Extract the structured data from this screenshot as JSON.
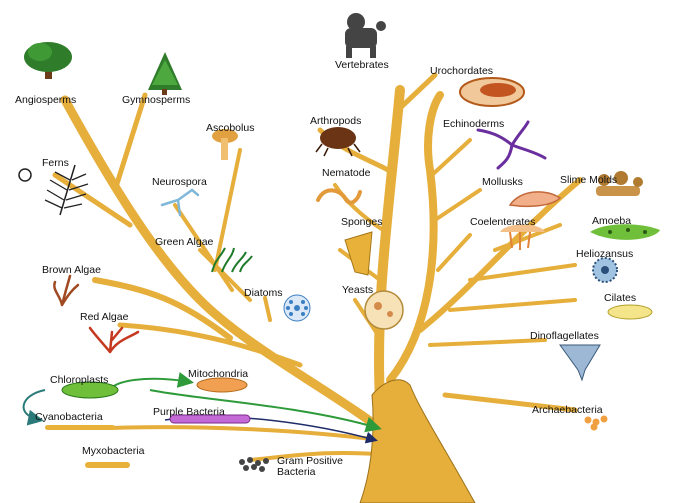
{
  "labels": {
    "angiosperms": "Angiosperms",
    "gymnosperms": "Gymnosperms",
    "ferns": "Ferns",
    "ascobolus": "Ascobolus",
    "neurospora": "Neurospora",
    "green_algae": "Green Algae",
    "brown_algae": "Brown Algae",
    "red_algae": "Red Algae",
    "diatoms": "Diatoms",
    "vertebrates": "Vertebrates",
    "urochordates": "Urochordates",
    "arthropods": "Arthropods",
    "echinoderms": "Echinoderms",
    "nematode": "Nematode",
    "mollusks": "Mollusks",
    "slime_molds": "Slime Molds",
    "sponges": "Sponges",
    "coelenterates": "Coelenterates",
    "amoeba": "Amoeba",
    "yeasts": "Yeasts",
    "heliozansus": "Heliozansus",
    "cilates": "Cilates",
    "dinoflagellates": "Dinoflagellates",
    "chloroplasts": "Chloroplasts",
    "mitochondria": "Mitochondria",
    "cyanobacteria": "Cyanobacteria",
    "purple_bacteria": "Purple Bacteria",
    "archaebacteria": "Archaebacteria",
    "myxobacteria": "Myxobacteria",
    "gram_positive_bacteria": "Gram Positive Bacteria"
  },
  "colors": {
    "trunk": "#e6ae3a",
    "trunk_outline": "#7a5510",
    "arrow_green": "#2e9a3a",
    "arrow_teal": "#2a7a7a",
    "arrow_navy": "#1e2c6a"
  },
  "icons": [
    "tree-icon",
    "conifer-icon",
    "fern-icon",
    "mushroom-icon",
    "hyphae-icon",
    "green-algae-icon",
    "brown-algae-icon",
    "red-algae-icon",
    "diatom-icon",
    "poodle-icon",
    "urochordate-icon",
    "mite-icon",
    "brittle-star-icon",
    "nematode-icon",
    "mollusk-icon",
    "slime-mold-icon",
    "sponge-icon",
    "jellyfish-icon",
    "amoeba-icon",
    "yeast-cell-icon",
    "heliozoan-icon",
    "ciliate-icon",
    "dinoflagellate-icon",
    "chloroplast-icon",
    "mitochondrion-icon",
    "cyanobacteria-icon",
    "purple-bacteria-icon",
    "archaebacteria-icon",
    "myxobacteria-icon",
    "gram-positive-icon"
  ]
}
